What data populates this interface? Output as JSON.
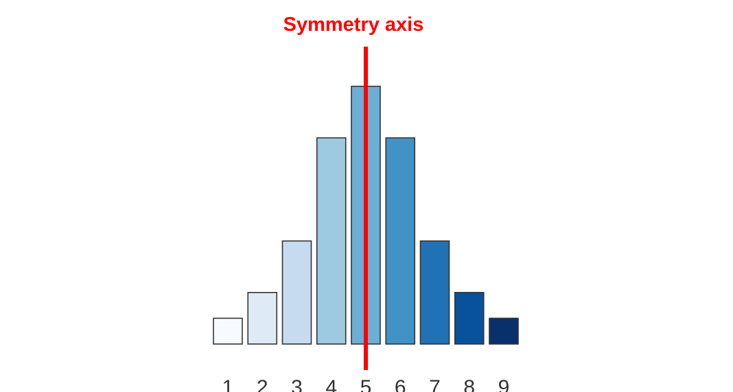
{
  "chart_data": {
    "type": "bar",
    "title": "",
    "xlabel": "",
    "ylabel": "",
    "categories": [
      "1",
      "2",
      "3",
      "4",
      "5",
      "6",
      "7",
      "8",
      "9"
    ],
    "values": [
      1,
      2,
      4,
      8,
      10,
      8,
      4,
      2,
      1
    ],
    "ylim": [
      0,
      10
    ],
    "grid": false,
    "bar_colors": [
      "#f7fbff",
      "#deebf7",
      "#c6dbef",
      "#9ecae1",
      "#6baed6",
      "#4292c6",
      "#2171b5",
      "#08519c",
      "#08306b"
    ],
    "bar_edge_color": "#333333",
    "annotation": {
      "text": "Symmetry axis",
      "color": "#ff0000",
      "at_category": "5"
    }
  }
}
